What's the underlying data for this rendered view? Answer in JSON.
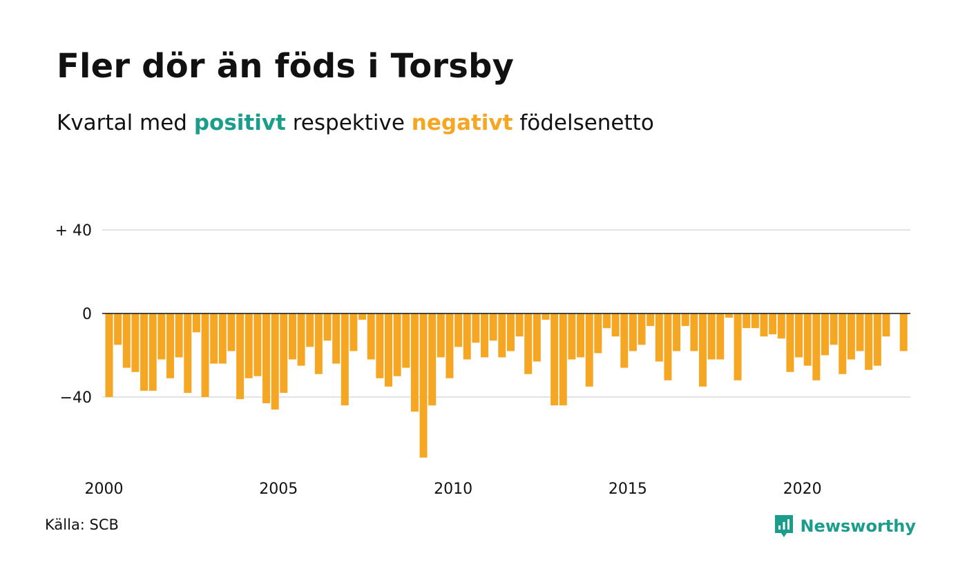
{
  "header": {
    "title": "Fler dör än föds i Torsby",
    "subtitle_pre": "Kvartal med ",
    "subtitle_pos": "positivt",
    "subtitle_mid": " respektive ",
    "subtitle_neg": "negativt",
    "subtitle_post": " födelsenetto"
  },
  "footer": {
    "source": "Källa: SCB",
    "brand": "Newsworthy",
    "brand_icon": "newsworthy-logo-icon"
  },
  "colors": {
    "positive": "#1a9d8a",
    "negative": "#f5a623",
    "grid": "#e3e3e3",
    "axis": "#111111"
  },
  "chart_data": {
    "type": "bar",
    "xlabel": "",
    "ylabel": "",
    "ylim": [
      -70,
      40
    ],
    "grid": true,
    "ytick_labels": [
      {
        "value": 40,
        "label": "+ 40"
      },
      {
        "value": 0,
        "label": "0"
      },
      {
        "value": -40,
        "label": "−40"
      }
    ],
    "xtick_labels": [
      "2000",
      "2005",
      "2010",
      "2015",
      "2020"
    ],
    "x_start": "2000 Q1",
    "quarters_per_year": 4,
    "values": [
      -40,
      -15,
      -26,
      -28,
      -37,
      -37,
      -22,
      -31,
      -21,
      -38,
      -9,
      -40,
      -24,
      -24,
      -18,
      -41,
      -31,
      -30,
      -43,
      -46,
      -38,
      -22,
      -25,
      -16,
      -29,
      -13,
      -24,
      -44,
      -18,
      -3,
      -22,
      -31,
      -35,
      -30,
      -26,
      -47,
      -69,
      -44,
      -21,
      -31,
      -16,
      -22,
      -14,
      -21,
      -13,
      -21,
      -18,
      -11,
      -29,
      -23,
      -3,
      -44,
      -44,
      -22,
      -21,
      -35,
      -19,
      -7,
      -11,
      -26,
      -18,
      -15,
      -6,
      -23,
      -32,
      -18,
      -6,
      -18,
      -35,
      -22,
      -22,
      -2,
      -32,
      -7,
      -7,
      -11,
      -10,
      -12,
      -28,
      -21,
      -25,
      -32,
      -20,
      -15,
      -29,
      -22,
      -18,
      -27,
      -25,
      -11,
      0,
      -18
    ]
  }
}
